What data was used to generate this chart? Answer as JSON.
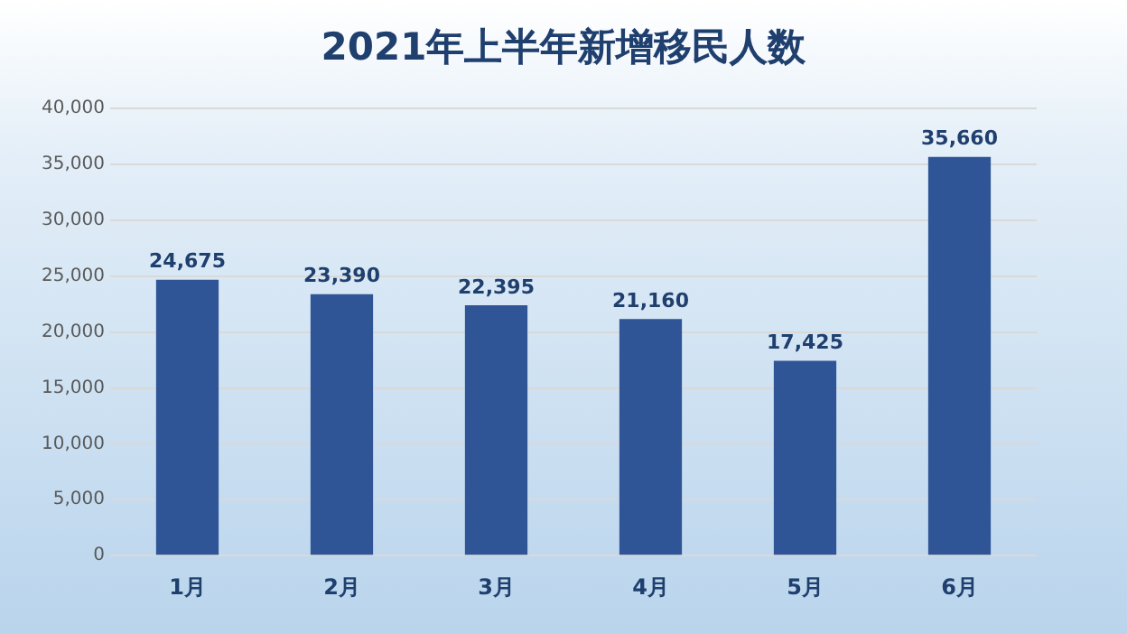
{
  "chart_data": {
    "type": "bar",
    "title": "2021年上半年新增移民人数",
    "categories": [
      "1月",
      "2月",
      "3月",
      "4月",
      "5月",
      "6月"
    ],
    "values": [
      24675,
      23390,
      22395,
      21160,
      17425,
      35660
    ],
    "value_labels": [
      "24,675",
      "23,390",
      "22,395",
      "21,160",
      "17,425",
      "35,660"
    ],
    "color": "#2f5597",
    "ylim": [
      0,
      40000
    ],
    "yticks": [
      0,
      {
        "value": 5000,
        "label": "5,000"
      },
      {
        "value": 10000,
        "label": "10,000"
      },
      {
        "value": 15000,
        "label": "15,000"
      },
      {
        "value": 20000,
        "label": "20,000"
      },
      {
        "value": 25000,
        "label": "25,000"
      },
      {
        "value": 30000,
        "label": "30,000"
      },
      {
        "value": 35000,
        "label": "35,000"
      },
      {
        "value": 40000,
        "label": "40,000"
      }
    ],
    "grid": "y",
    "legend": false
  }
}
